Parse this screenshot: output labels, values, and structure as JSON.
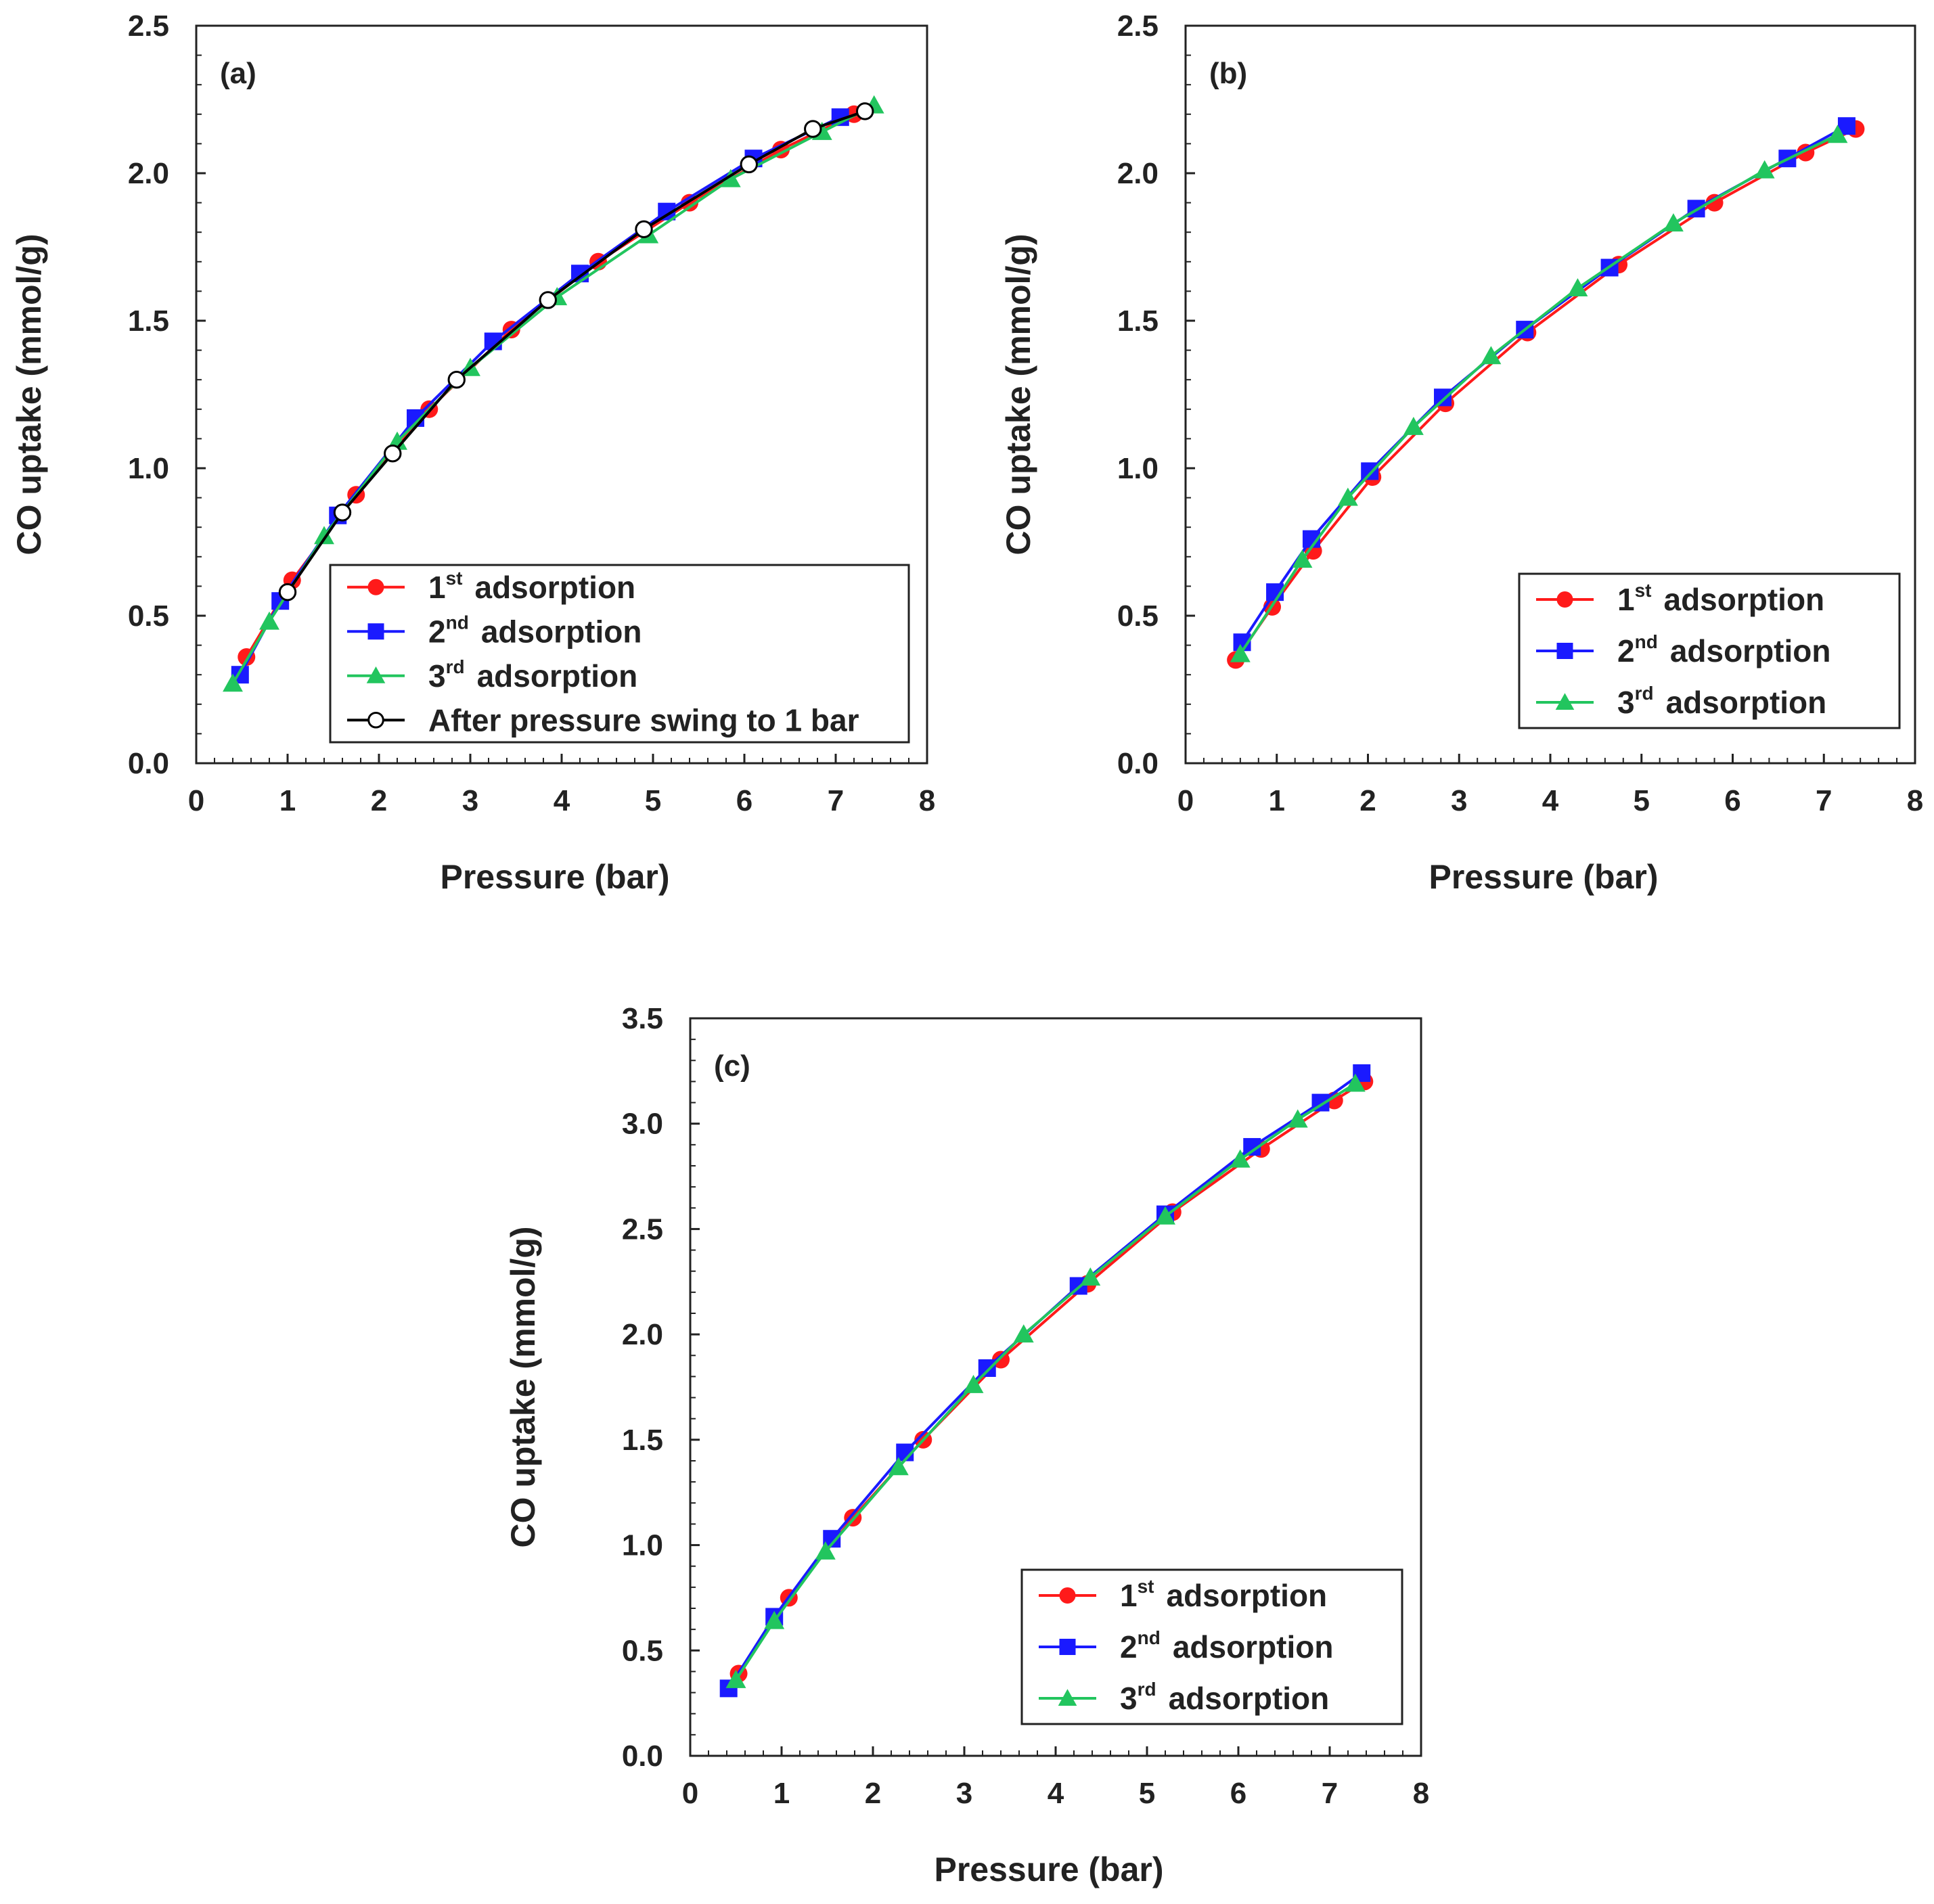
{
  "colors": {
    "first": "#ff1a1a",
    "second": "#1a1aff",
    "third": "#22c55e",
    "after": "#000000",
    "frame": "#222222"
  },
  "chart_data": [
    {
      "type": "line",
      "panel_label": "(a)",
      "xlabel": "Pressure (bar)",
      "ylabel": "CO uptake (mmol/g)",
      "xlim": [
        0,
        8
      ],
      "ylim": [
        0,
        2.5
      ],
      "xticks": [
        "0",
        "1",
        "2",
        "3",
        "4",
        "5",
        "6",
        "7",
        "8"
      ],
      "yticks": [
        "0.0",
        "0.5",
        "1.0",
        "1.5",
        "2.0",
        "2.5"
      ],
      "series": [
        {
          "key": "first",
          "name": "1st adsorption",
          "prefix": "1",
          "sup": "st",
          "suffix": "adsorption",
          "marker": "circle",
          "x": [
            0.55,
            1.05,
            1.75,
            2.55,
            3.45,
            4.4,
            5.4,
            6.4,
            7.2
          ],
          "y": [
            0.36,
            0.62,
            0.91,
            1.2,
            1.47,
            1.7,
            1.9,
            2.08,
            2.2
          ]
        },
        {
          "key": "second",
          "name": "2nd adsorption",
          "prefix": "2",
          "sup": "nd",
          "suffix": "adsorption",
          "marker": "square",
          "x": [
            0.48,
            0.92,
            1.55,
            2.4,
            3.25,
            4.2,
            5.15,
            6.1,
            7.05
          ],
          "y": [
            0.3,
            0.55,
            0.84,
            1.17,
            1.43,
            1.66,
            1.87,
            2.05,
            2.19
          ]
        },
        {
          "key": "third",
          "name": "3rd adsorption",
          "prefix": "3",
          "sup": "rd",
          "suffix": "adsorption",
          "marker": "triangle",
          "x": [
            0.4,
            0.8,
            1.4,
            2.2,
            3.0,
            3.95,
            4.95,
            5.85,
            6.85,
            7.42
          ],
          "y": [
            0.27,
            0.48,
            0.77,
            1.09,
            1.34,
            1.58,
            1.79,
            1.98,
            2.14,
            2.23
          ]
        },
        {
          "key": "after",
          "name": "After pressure swing to 1 bar",
          "prefix": "After pressure swing to 1 bar",
          "sup": "",
          "suffix": "",
          "marker": "open-circle",
          "x": [
            1.0,
            1.6,
            2.15,
            2.85,
            3.85,
            4.9,
            6.05,
            6.75,
            7.32
          ],
          "y": [
            0.58,
            0.85,
            1.05,
            1.3,
            1.57,
            1.81,
            2.03,
            2.15,
            2.21
          ]
        }
      ],
      "legend_position": "bottom-right"
    },
    {
      "type": "line",
      "panel_label": "(b)",
      "xlabel": "Pressure (bar)",
      "ylabel": "CO uptake (mmol/g)",
      "xlim": [
        0,
        8
      ],
      "ylim": [
        0,
        2.5
      ],
      "xticks": [
        "0",
        "1",
        "2",
        "3",
        "4",
        "5",
        "6",
        "7",
        "8"
      ],
      "yticks": [
        "0.0",
        "0.5",
        "1.0",
        "1.5",
        "2.0",
        "2.5"
      ],
      "series": [
        {
          "key": "first",
          "name": "1st adsorption",
          "prefix": "1",
          "sup": "st",
          "suffix": "adsorption",
          "marker": "circle",
          "x": [
            0.55,
            0.95,
            1.4,
            2.05,
            2.85,
            3.75,
            4.75,
            5.8,
            6.8,
            7.35
          ],
          "y": [
            0.35,
            0.53,
            0.72,
            0.97,
            1.22,
            1.46,
            1.69,
            1.9,
            2.07,
            2.15
          ]
        },
        {
          "key": "second",
          "name": "2nd adsorption",
          "prefix": "2",
          "sup": "nd",
          "suffix": "adsorption",
          "marker": "square",
          "x": [
            0.62,
            0.98,
            1.38,
            2.02,
            2.82,
            3.72,
            4.65,
            5.6,
            6.6,
            7.25
          ],
          "y": [
            0.41,
            0.58,
            0.76,
            0.99,
            1.24,
            1.47,
            1.68,
            1.88,
            2.05,
            2.16
          ]
        },
        {
          "key": "third",
          "name": "3rd adsorption",
          "prefix": "3",
          "sup": "rd",
          "suffix": "adsorption",
          "marker": "triangle",
          "x": [
            0.6,
            1.28,
            1.78,
            2.5,
            3.35,
            4.3,
            5.35,
            6.35,
            7.15
          ],
          "y": [
            0.37,
            0.69,
            0.9,
            1.14,
            1.38,
            1.61,
            1.83,
            2.01,
            2.13
          ]
        }
      ],
      "legend_position": "bottom-right"
    },
    {
      "type": "line",
      "panel_label": "(c)",
      "xlabel": "Pressure (bar)",
      "ylabel": "CO uptake (mmol/g)",
      "xlim": [
        0,
        8
      ],
      "ylim": [
        0,
        3.5
      ],
      "xticks": [
        "0",
        "1",
        "2",
        "3",
        "4",
        "5",
        "6",
        "7",
        "8"
      ],
      "yticks": [
        "0.0",
        "0.5",
        "1.0",
        "1.5",
        "2.0",
        "2.5",
        "3.0",
        "3.5"
      ],
      "series": [
        {
          "key": "first",
          "name": "1st adsorption",
          "prefix": "1",
          "sup": "st",
          "suffix": "adsorption",
          "marker": "circle",
          "x": [
            0.53,
            1.08,
            1.78,
            2.55,
            3.4,
            4.35,
            5.28,
            6.25,
            7.05,
            7.38
          ],
          "y": [
            0.39,
            0.75,
            1.13,
            1.5,
            1.88,
            2.24,
            2.58,
            2.88,
            3.11,
            3.2
          ]
        },
        {
          "key": "second",
          "name": "2nd adsorption",
          "prefix": "2",
          "sup": "nd",
          "suffix": "adsorption",
          "marker": "square",
          "x": [
            0.42,
            0.92,
            1.55,
            2.35,
            3.25,
            4.25,
            5.2,
            6.15,
            6.9,
            7.35
          ],
          "y": [
            0.32,
            0.66,
            1.03,
            1.44,
            1.84,
            2.23,
            2.57,
            2.89,
            3.1,
            3.24
          ]
        },
        {
          "key": "third",
          "name": "3rd adsorption",
          "prefix": "3",
          "sup": "rd",
          "suffix": "adsorption",
          "marker": "triangle",
          "x": [
            0.5,
            0.92,
            1.48,
            2.28,
            3.1,
            3.65,
            4.38,
            5.2,
            6.02,
            6.65,
            7.28
          ],
          "y": [
            0.36,
            0.64,
            0.97,
            1.37,
            1.76,
            2.0,
            2.27,
            2.56,
            2.83,
            3.02,
            3.19
          ]
        }
      ],
      "legend_position": "bottom-right"
    }
  ]
}
